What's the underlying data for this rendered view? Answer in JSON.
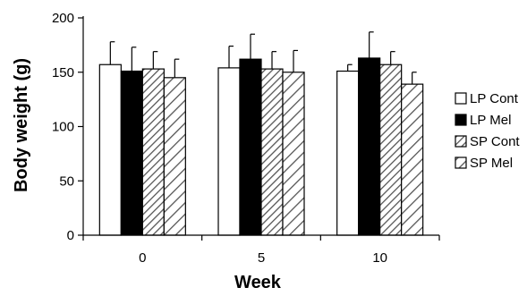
{
  "chart_data": {
    "type": "bar",
    "title": "",
    "xlabel": "Week",
    "ylabel": "Body weight (g)",
    "ylim": [
      0,
      200
    ],
    "yticks": [
      0,
      50,
      100,
      150,
      200
    ],
    "categories": [
      "0",
      "5",
      "10"
    ],
    "series": [
      {
        "name": "LP Cont",
        "values": [
          157,
          154,
          151
        ],
        "errors": [
          21,
          20,
          6
        ],
        "fill": "#ffffff",
        "pattern": "none"
      },
      {
        "name": "LP Mel",
        "values": [
          151,
          162,
          163
        ],
        "errors": [
          22,
          23,
          24
        ],
        "fill": "#000000",
        "pattern": "none"
      },
      {
        "name": "SP Cont",
        "values": [
          153,
          153,
          157
        ],
        "errors": [
          16,
          16,
          12
        ],
        "fill": "#ffffff",
        "pattern": "dense-hatch"
      },
      {
        "name": "SP Mel",
        "values": [
          145,
          150,
          139
        ],
        "errors": [
          17,
          20,
          11
        ],
        "fill": "#ffffff",
        "pattern": "wide-hatch"
      }
    ],
    "legend_position": "right",
    "grid": false,
    "error_bars": "upper"
  }
}
